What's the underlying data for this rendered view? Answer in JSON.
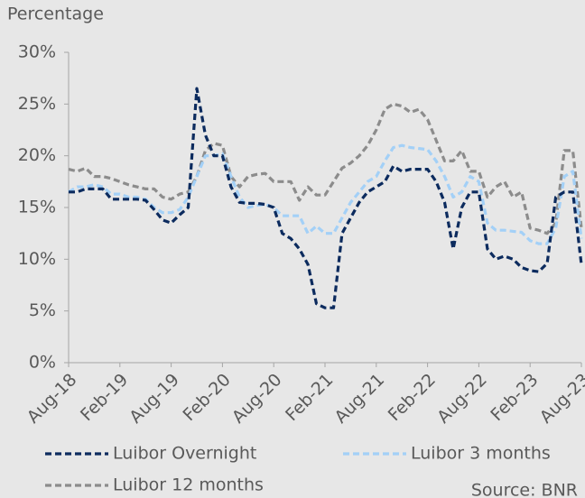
{
  "chart_data": {
    "type": "line",
    "ylabel": "Percentage",
    "source": "Source: BNR",
    "categories": [
      "Aug-18",
      null,
      null,
      null,
      null,
      null,
      "Feb-19",
      null,
      null,
      null,
      null,
      null,
      "Aug-19",
      null,
      null,
      null,
      null,
      null,
      "Feb-20",
      null,
      null,
      null,
      null,
      null,
      "Aug-20",
      null,
      null,
      null,
      null,
      null,
      "Feb-21",
      null,
      null,
      null,
      null,
      null,
      "Aug-21",
      null,
      null,
      null,
      null,
      null,
      "Feb-22",
      null,
      null,
      null,
      null,
      null,
      "Aug-22",
      null,
      null,
      null,
      null,
      null,
      "Feb-23",
      null,
      null,
      null,
      null,
      null,
      "Aug-23"
    ],
    "series": [
      {
        "name": "Luibor 12 months",
        "color": "#8c8c8c",
        "values": [
          18.7,
          18.5,
          18.8,
          18.0,
          18.0,
          17.8,
          17.5,
          17.2,
          17.0,
          16.8,
          16.8,
          16.0,
          15.8,
          16.3,
          16.5,
          18.0,
          20.5,
          21.2,
          21.0,
          18.0,
          17.0,
          18.0,
          18.2,
          18.3,
          17.5,
          17.5,
          17.5,
          15.7,
          17.0,
          16.2,
          16.2,
          17.5,
          18.8,
          19.3,
          20.0,
          21.0,
          22.5,
          24.5,
          25.0,
          24.8,
          24.2,
          24.5,
          23.5,
          21.5,
          19.5,
          19.5,
          20.5,
          18.5,
          18.5,
          16.0,
          17.0,
          17.5,
          16.0,
          16.5,
          13.0,
          12.8,
          12.5,
          13.5,
          20.5,
          20.5,
          13.0
        ]
      },
      {
        "name": "Luibor 3 months",
        "color": "#a3d0f7",
        "values": [
          16.5,
          17.0,
          17.0,
          17.2,
          17.0,
          16.3,
          16.3,
          16.0,
          16.0,
          15.8,
          15.0,
          14.5,
          14.5,
          14.8,
          16.0,
          18.0,
          20.0,
          20.0,
          20.2,
          18.0,
          16.0,
          15.0,
          15.2,
          15.3,
          15.0,
          14.2,
          14.2,
          14.2,
          12.5,
          13.2,
          12.5,
          12.5,
          14.0,
          15.5,
          16.5,
          17.5,
          18.0,
          19.5,
          20.8,
          21.0,
          20.8,
          20.7,
          20.6,
          19.5,
          18.0,
          16.0,
          16.5,
          18.0,
          17.5,
          13.5,
          12.8,
          12.8,
          12.7,
          12.6,
          11.8,
          11.5,
          11.5,
          13.0,
          18.0,
          18.5,
          12.0
        ]
      },
      {
        "name": "Luibor Overnight",
        "color": "#0c2b5e",
        "values": [
          16.5,
          16.5,
          16.8,
          16.8,
          16.8,
          15.8,
          15.8,
          15.8,
          15.8,
          15.7,
          14.8,
          13.8,
          13.5,
          14.3,
          15.0,
          26.5,
          22.0,
          20.0,
          20.0,
          17.0,
          15.5,
          15.4,
          15.4,
          15.3,
          15.0,
          12.5,
          12.0,
          11.0,
          9.5,
          5.7,
          5.3,
          5.3,
          12.5,
          14.0,
          15.5,
          16.5,
          17.0,
          17.5,
          19.0,
          18.5,
          18.7,
          18.7,
          18.7,
          17.5,
          15.5,
          11.0,
          15.0,
          16.5,
          16.5,
          11.0,
          10.0,
          10.3,
          10.0,
          9.2,
          8.9,
          8.8,
          9.6,
          16.0,
          16.5,
          16.5,
          9.5
        ]
      }
    ],
    "ylim": [
      0,
      30
    ],
    "yticks": [
      {
        "value": 0,
        "label": "0%"
      },
      {
        "value": 5,
        "label": "5%"
      },
      {
        "value": 10,
        "label": "10%"
      },
      {
        "value": 15,
        "label": "15%"
      },
      {
        "value": 20,
        "label": "20%"
      },
      {
        "value": 25,
        "label": "25%"
      },
      {
        "value": 30,
        "label": "30%"
      }
    ],
    "grid": false,
    "legend_order": [
      2,
      1,
      0
    ]
  }
}
